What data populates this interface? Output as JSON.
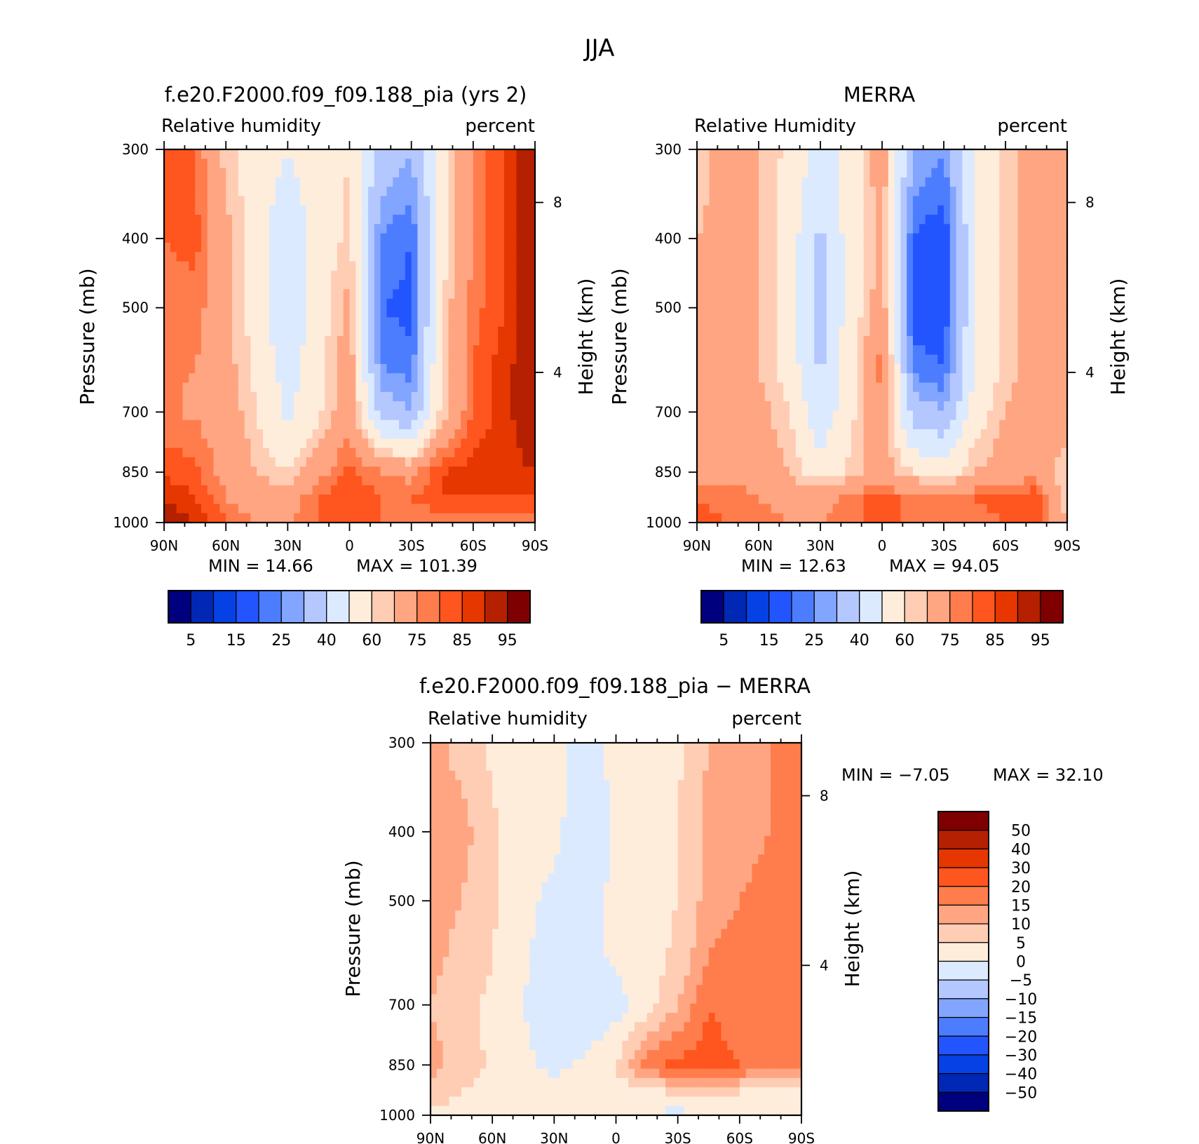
{
  "figure_title": "JJA",
  "colors_seq": [
    "#00007f",
    "#0028b4",
    "#0641e6",
    "#2355ff",
    "#4d7dff",
    "#82a5ff",
    "#b4c8ff",
    "#dceaff",
    "#ffeddc",
    "#ffcdb4",
    "#ffa582",
    "#ff7d4d",
    "#ff551e",
    "#e63700",
    "#b42000",
    "#7f0000"
  ],
  "colors_diff": [
    "#00007f",
    "#0028b4",
    "#0641e6",
    "#2355ff",
    "#4d7dff",
    "#82a5ff",
    "#b4c8ff",
    "#dceaff",
    "#ffeddc",
    "#ffcdb4",
    "#ffa582",
    "#ff7d4d",
    "#ff551e",
    "#e63700",
    "#b42000",
    "#7f0000"
  ],
  "chart_data": [
    {
      "type": "heatmap",
      "title": "f.e20.F2000.f09_f09.188_pia (yrs 2)",
      "subtitle_left": "Relative humidity",
      "subtitle_right": "percent",
      "ylabel": "Pressure (mb)",
      "ylabel_right": "Height (km)",
      "x_ticks": [
        "90N",
        "60N",
        "30N",
        "0",
        "30S",
        "60S",
        "90S"
      ],
      "y_ticks": [
        "300",
        "400",
        "500",
        "700",
        "850",
        "1000"
      ],
      "y_ticks_right": [
        "8",
        "4"
      ],
      "min_text": "MIN =   14.66",
      "max_text": "MAX =  101.39",
      "lat_grid": [
        90,
        75,
        60,
        45,
        30,
        15,
        0,
        -15,
        -30,
        -45,
        -60,
        -75,
        -90
      ],
      "pressure_grid": [
        300,
        400,
        500,
        600,
        700,
        850,
        925,
        1000
      ],
      "values": [
        [
          80,
          80,
          62,
          55,
          50,
          55,
          60,
          35,
          30,
          55,
          75,
          85,
          95
        ],
        [
          80,
          82,
          68,
          55,
          42,
          55,
          62,
          25,
          20,
          55,
          75,
          85,
          95
        ],
        [
          76,
          78,
          68,
          55,
          40,
          55,
          68,
          20,
          18,
          60,
          78,
          85,
          95
        ],
        [
          76,
          75,
          68,
          58,
          45,
          57,
          70,
          25,
          22,
          62,
          80,
          88,
          95
        ],
        [
          76,
          74,
          70,
          60,
          48,
          58,
          72,
          35,
          30,
          62,
          80,
          88,
          95
        ],
        [
          84,
          82,
          72,
          65,
          60,
          72,
          82,
          75,
          72,
          85,
          88,
          88,
          90
        ],
        [
          90,
          85,
          75,
          70,
          70,
          80,
          85,
          80,
          80,
          85,
          85,
          85,
          85
        ],
        [
          95,
          90,
          80,
          75,
          75,
          80,
          85,
          80,
          75,
          75,
          75,
          75,
          75
        ]
      ],
      "colorbar_labels": [
        "5",
        "15",
        "25",
        "40",
        "60",
        "75",
        "85",
        "95"
      ]
    },
    {
      "type": "heatmap",
      "title": "MERRA",
      "subtitle_left": "Relative Humidity",
      "subtitle_right": "percent",
      "ylabel": "Pressure (mb)",
      "ylabel_right": "Height (km)",
      "x_ticks": [
        "90N",
        "60N",
        "30N",
        "0",
        "30S",
        "60S",
        "90S"
      ],
      "y_ticks": [
        "300",
        "400",
        "500",
        "700",
        "850",
        "1000"
      ],
      "y_ticks_right": [
        "8",
        "4"
      ],
      "min_text": "MIN =   12.63",
      "max_text": "MAX =   94.05",
      "lat_grid": [
        90,
        75,
        60,
        45,
        30,
        15,
        0,
        -15,
        -30,
        -45,
        -60,
        -75,
        -90
      ],
      "pressure_grid": [
        300,
        400,
        500,
        600,
        700,
        850,
        925,
        1000
      ],
      "values": [
        [
          62,
          68,
          65,
          58,
          45,
          55,
          70,
          30,
          25,
          50,
          62,
          68,
          70
        ],
        [
          65,
          68,
          65,
          55,
          38,
          55,
          68,
          20,
          15,
          50,
          62,
          68,
          70
        ],
        [
          65,
          68,
          65,
          55,
          35,
          55,
          70,
          18,
          15,
          50,
          62,
          68,
          70
        ],
        [
          65,
          68,
          65,
          55,
          38,
          58,
          78,
          22,
          20,
          50,
          62,
          68,
          70
        ],
        [
          65,
          70,
          68,
          60,
          42,
          58,
          75,
          35,
          30,
          55,
          65,
          70,
          70
        ],
        [
          68,
          72,
          72,
          65,
          55,
          62,
          68,
          60,
          55,
          65,
          70,
          72,
          60
        ],
        [
          80,
          78,
          75,
          72,
          70,
          78,
          82,
          78,
          75,
          80,
          82,
          85,
          60
        ],
        [
          82,
          80,
          78,
          75,
          75,
          78,
          82,
          78,
          75,
          78,
          80,
          85,
          65
        ]
      ],
      "colorbar_labels": [
        "5",
        "15",
        "25",
        "40",
        "60",
        "75",
        "85",
        "95"
      ]
    },
    {
      "type": "heatmap",
      "title": "f.e20.F2000.f09_f09.188_pia − MERRA",
      "subtitle_left": "Relative humidity",
      "subtitle_right": "percent",
      "ylabel": "Pressure (mb)",
      "ylabel_right": "Height (km)",
      "x_ticks": [
        "90N",
        "60N",
        "30N",
        "0",
        "30S",
        "60S",
        "90S"
      ],
      "y_ticks": [
        "300",
        "400",
        "500",
        "700",
        "850",
        "1000"
      ],
      "y_ticks_right": [
        "8",
        "4"
      ],
      "min_text": "MIN =    −7.05",
      "max_text": "MAX =    32.10",
      "lat_grid": [
        90,
        75,
        60,
        45,
        30,
        15,
        0,
        -15,
        -30,
        -45,
        -60,
        -75,
        -90
      ],
      "pressure_grid": [
        300,
        400,
        500,
        600,
        700,
        850,
        925,
        1000
      ],
      "values": [
        [
          12,
          8,
          4,
          2,
          2,
          -2,
          1,
          2,
          4,
          10,
          12,
          15,
          20
        ],
        [
          14,
          12,
          6,
          2,
          1,
          -3,
          1,
          3,
          5,
          12,
          14,
          15,
          20
        ],
        [
          12,
          10,
          6,
          1,
          -1,
          -2,
          1,
          3,
          5,
          12,
          15,
          16,
          20
        ],
        [
          12,
          8,
          5,
          1,
          -3,
          -2,
          1,
          3,
          6,
          15,
          18,
          16,
          20
        ],
        [
          10,
          6,
          4,
          0,
          -4,
          -4,
          -2,
          2,
          10,
          20,
          18,
          16,
          20
        ],
        [
          12,
          8,
          4,
          1,
          -1,
          1,
          5,
          18,
          22,
          22,
          20,
          16,
          18
        ],
        [
          8,
          5,
          3,
          2,
          1,
          1,
          2,
          4,
          6,
          6,
          5,
          4,
          4
        ],
        [
          4,
          3,
          2,
          1,
          1,
          1,
          1,
          0,
          -2,
          2,
          3,
          3,
          3
        ]
      ],
      "colorbar_labels": [
        "50",
        "40",
        "30",
        "20",
        "15",
        "10",
        "5",
        "0",
        "−5",
        "−10",
        "−15",
        "−20",
        "−30",
        "−40",
        "−50"
      ]
    }
  ]
}
